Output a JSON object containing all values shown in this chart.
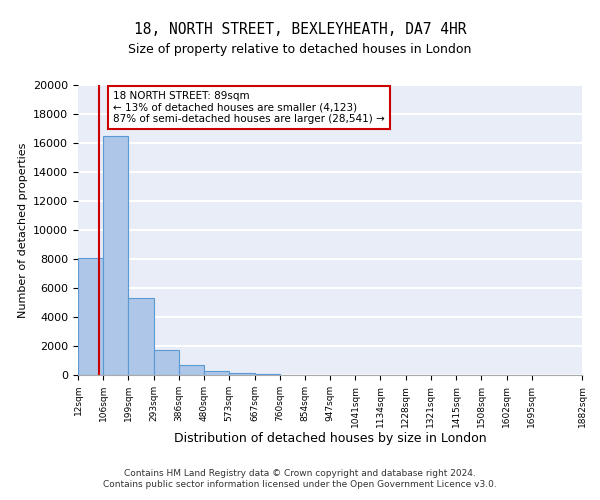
{
  "title": "18, NORTH STREET, BEXLEYHEATH, DA7 4HR",
  "subtitle": "Size of property relative to detached houses in London",
  "xlabel": "Distribution of detached houses by size in London",
  "ylabel": "Number of detached properties",
  "bar_values": [
    8100,
    16500,
    5300,
    1750,
    700,
    300,
    150,
    100,
    0,
    0,
    0,
    0,
    0,
    0,
    0,
    0,
    0,
    0,
    0
  ],
  "bar_color": "#aec6e8",
  "bar_edge_color": "#5b9bd5",
  "vline_x": 89,
  "vline_color": "#cc0000",
  "ylim": [
    0,
    20000
  ],
  "yticks": [
    0,
    2000,
    4000,
    6000,
    8000,
    10000,
    12000,
    14000,
    16000,
    18000,
    20000
  ],
  "annotation_title": "18 NORTH STREET: 89sqm",
  "annotation_line1": "← 13% of detached houses are smaller (4,123)",
  "annotation_line2": "87% of semi-detached houses are larger (28,541) →",
  "annotation_box_color": "#ffffff",
  "annotation_box_edge": "#cc0000",
  "footer_line1": "Contains HM Land Registry data © Crown copyright and database right 2024.",
  "footer_line2": "Contains public sector information licensed under the Open Government Licence v3.0.",
  "background_color": "#e8edf8",
  "grid_color": "#ffffff",
  "bin_edges": [
    12,
    106,
    199,
    293,
    386,
    480,
    573,
    667,
    760,
    854,
    947,
    1041,
    1134,
    1228,
    1321,
    1415,
    1508,
    1602,
    1695,
    1882
  ],
  "tick_labels": [
    "12sqm",
    "106sqm",
    "199sqm",
    "293sqm",
    "386sqm",
    "480sqm",
    "573sqm",
    "667sqm",
    "760sqm",
    "854sqm",
    "947sqm",
    "1041sqm",
    "1134sqm",
    "1228sqm",
    "1321sqm",
    "1415sqm",
    "1508sqm",
    "1602sqm",
    "1695sqm",
    "1882sqm"
  ]
}
